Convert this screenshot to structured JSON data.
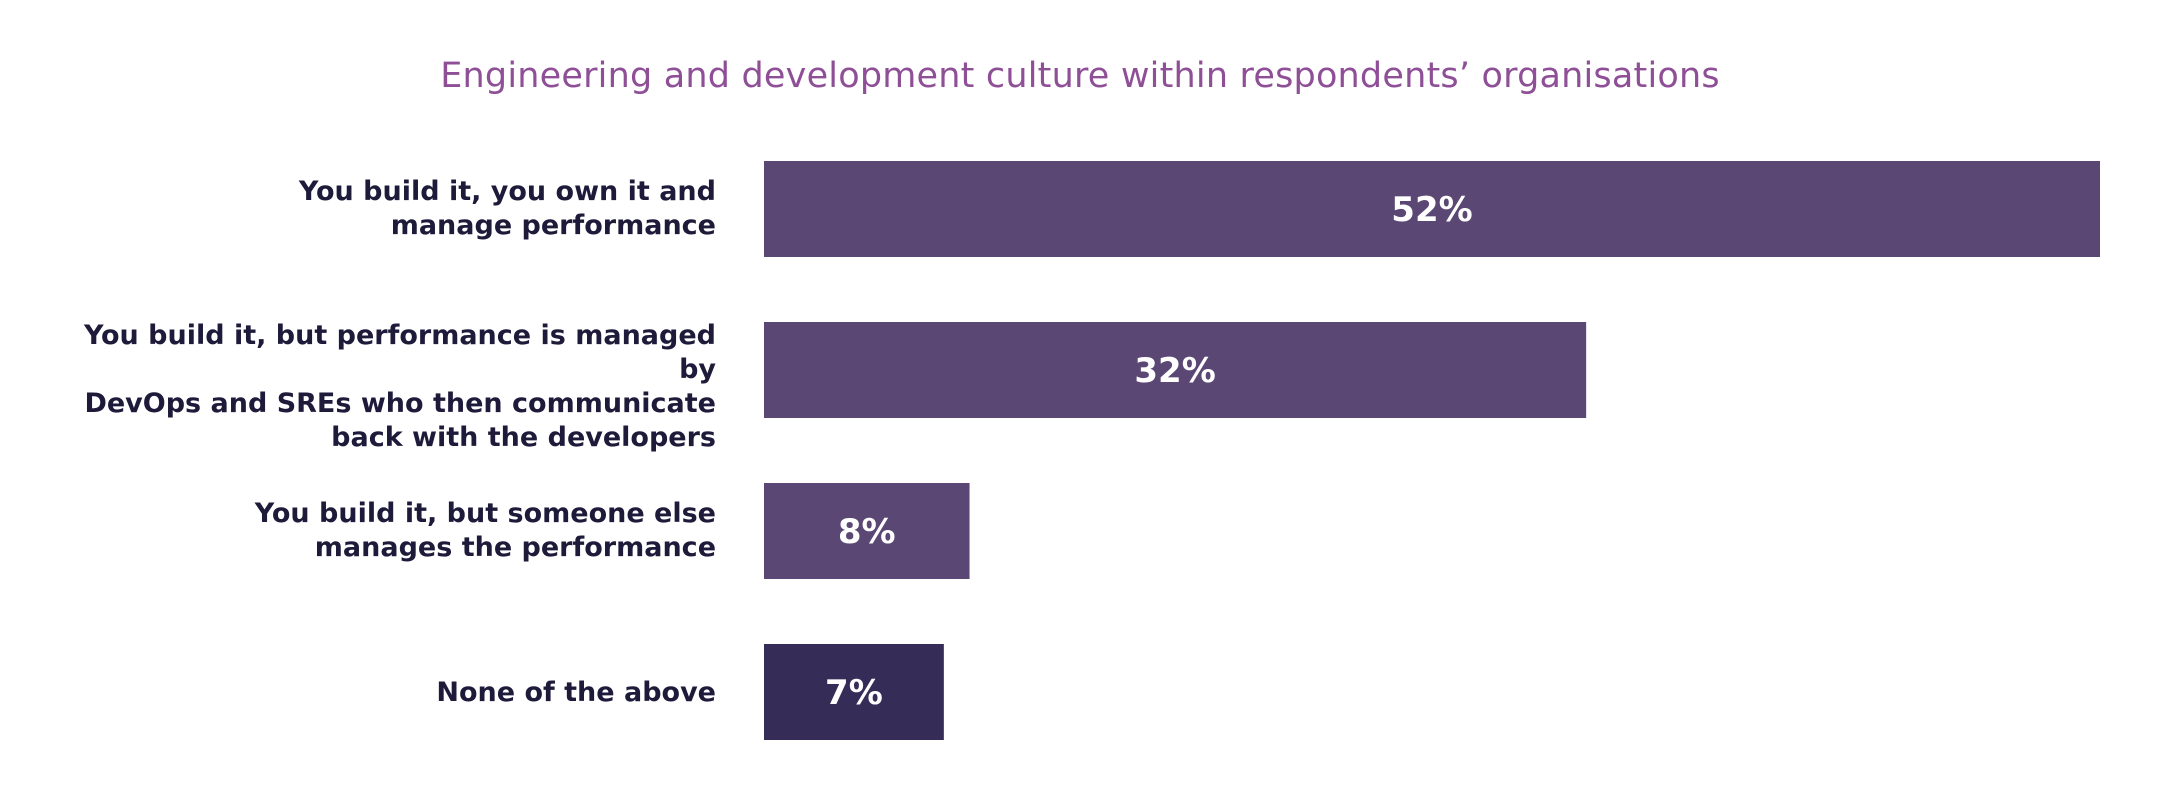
{
  "chart_data": {
    "type": "bar",
    "orientation": "horizontal",
    "title": "Engineering and development culture within respondents’ organisations",
    "xlabel": "",
    "ylabel": "",
    "xlim": [
      0,
      52
    ],
    "grid": false,
    "legend": "none",
    "categories": [
      "You build it, you own it and\nmanage performance",
      "You build it, but performance is managed by\nDevOps and SREs who then communicate\nback with the developers",
      "You build it, but someone else\nmanages the performance",
      "None of the above"
    ],
    "values": [
      52,
      32,
      8,
      7
    ],
    "value_labels": [
      "52%",
      "32%",
      "8%",
      "7%"
    ],
    "bar_colors": [
      "#5A4774",
      "#5A4774",
      "#5A4774",
      "#362C58"
    ]
  },
  "colors": {
    "title": "#8E4F97",
    "label_text": "#1E1A3A",
    "bar_text": "#FFFFFF"
  }
}
